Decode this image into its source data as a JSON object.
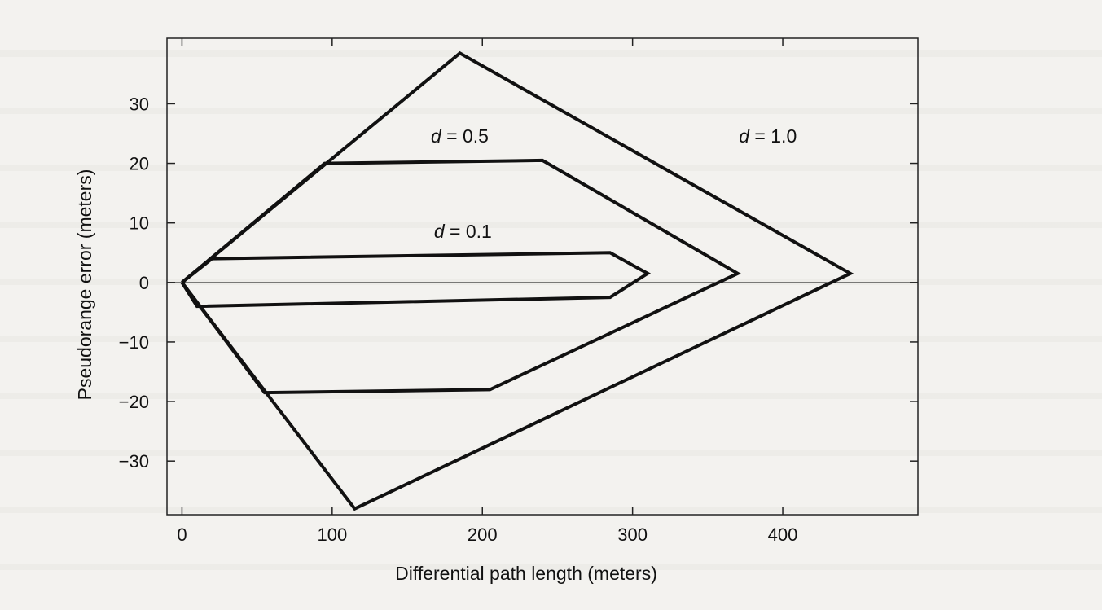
{
  "chart_data": {
    "type": "line",
    "title": "",
    "xlabel": "Differential path length (meters)",
    "ylabel": "Pseudorange error (meters)",
    "xlim": [
      -10,
      490
    ],
    "ylim": [
      -39,
      41
    ],
    "x_ticks": [
      0,
      100,
      200,
      300,
      400
    ],
    "y_ticks": [
      30,
      20,
      10,
      0,
      -10,
      -20,
      -30
    ],
    "x_tick_labels": [
      "0",
      "100",
      "200",
      "300",
      "400"
    ],
    "y_tick_labels": [
      "30",
      "20",
      "10",
      "0",
      "−10",
      "−20",
      "−30"
    ],
    "grid": false,
    "reference_line_y": 0,
    "series": [
      {
        "name": "d = 0.1",
        "d_value": "0.1",
        "points": [
          [
            0,
            0
          ],
          [
            20,
            4
          ],
          [
            285,
            5
          ],
          [
            310,
            1.5
          ],
          [
            285,
            -2.5
          ],
          [
            10,
            -4
          ],
          [
            0,
            0
          ]
        ]
      },
      {
        "name": "d = 0.5",
        "d_value": "0.5",
        "points": [
          [
            0,
            0
          ],
          [
            95,
            20
          ],
          [
            240,
            20.5
          ],
          [
            370,
            1.5
          ],
          [
            205,
            -18
          ],
          [
            55,
            -18.5
          ],
          [
            0,
            0
          ]
        ]
      },
      {
        "name": "d = 1.0",
        "d_value": "1.0",
        "points": [
          [
            0,
            0
          ],
          [
            185,
            38.5
          ],
          [
            445,
            1.5
          ],
          [
            115,
            -38
          ],
          [
            0,
            0
          ]
        ]
      }
    ],
    "label_prefix": "d"
  }
}
